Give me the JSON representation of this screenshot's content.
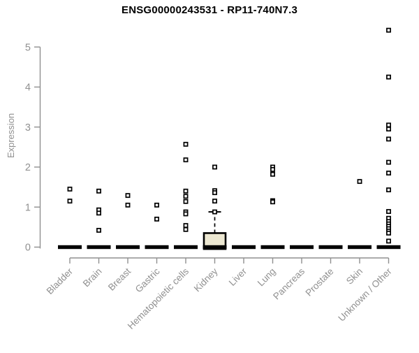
{
  "chart_data": {
    "type": "boxplot",
    "title": "ENSG00000243531 - RP11-740N7.3",
    "ylabel": "Expression",
    "xlabel": "",
    "ylim": [
      0,
      5.5
    ],
    "yticks": [
      0,
      1,
      2,
      3,
      4,
      5
    ],
    "grid": false,
    "legend": "none",
    "marker": "open-square",
    "categories": [
      "Bladder",
      "Brain",
      "Breast",
      "Gastric",
      "Hematopoietic cells",
      "Kidney",
      "Liver",
      "Lung",
      "Pancreas",
      "Prostate",
      "Skin",
      "Unknown / Other"
    ],
    "series": [
      {
        "category": "Bladder",
        "box": {
          "low": 0,
          "q1": 0,
          "median": 0,
          "q3": 0,
          "high": 0
        },
        "points": [
          1.45,
          1.15
        ]
      },
      {
        "category": "Brain",
        "box": {
          "low": 0,
          "q1": 0,
          "median": 0,
          "q3": 0,
          "high": 0
        },
        "points": [
          1.4,
          0.93,
          0.85,
          0.42
        ]
      },
      {
        "category": "Breast",
        "box": {
          "low": 0,
          "q1": 0,
          "median": 0,
          "q3": 0,
          "high": 0
        },
        "points": [
          1.29,
          1.05
        ]
      },
      {
        "category": "Gastric",
        "box": {
          "low": 0,
          "q1": 0,
          "median": 0,
          "q3": 0,
          "high": 0
        },
        "points": [
          1.05,
          0.7
        ]
      },
      {
        "category": "Hematopoietic cells",
        "box": {
          "low": 0,
          "q1": 0,
          "median": 0,
          "q3": 0,
          "high": 0
        },
        "points": [
          2.57,
          2.18,
          1.4,
          1.27,
          1.14,
          0.88,
          0.83,
          0.54,
          0.44
        ]
      },
      {
        "category": "Kidney",
        "box": {
          "low": 0,
          "q1": 0,
          "median": 0,
          "q3": 0.35,
          "high": 0.88
        },
        "points": [
          2.0,
          1.41,
          1.36,
          1.15,
          0.88
        ]
      },
      {
        "category": "Liver",
        "box": {
          "low": 0,
          "q1": 0,
          "median": 0,
          "q3": 0,
          "high": 0
        },
        "points": []
      },
      {
        "category": "Lung",
        "box": {
          "low": 0,
          "q1": 0,
          "median": 0,
          "q3": 0,
          "high": 0
        },
        "points": [
          2.0,
          1.94,
          1.82,
          1.16,
          1.13
        ]
      },
      {
        "category": "Pancreas",
        "box": {
          "low": 0,
          "q1": 0,
          "median": 0,
          "q3": 0,
          "high": 0
        },
        "points": []
      },
      {
        "category": "Prostate",
        "box": {
          "low": 0,
          "q1": 0,
          "median": 0,
          "q3": 0,
          "high": 0
        },
        "points": []
      },
      {
        "category": "Skin",
        "box": {
          "low": 0,
          "q1": 0,
          "median": 0,
          "q3": 0,
          "high": 0
        },
        "points": [
          1.64
        ]
      },
      {
        "category": "Unknown / Other",
        "box": {
          "low": 0,
          "q1": 0,
          "median": 0,
          "q3": 0,
          "high": 0
        },
        "points": [
          5.42,
          4.25,
          3.05,
          2.95,
          2.7,
          2.12,
          1.85,
          1.43,
          0.89,
          0.72,
          0.64,
          0.58,
          0.52,
          0.46,
          0.4,
          0.35,
          0.15
        ]
      }
    ],
    "colors": {
      "box_fill": "#ece7d1",
      "box_stroke": "#000000",
      "median": "#000000",
      "point_fill": "#ffffff",
      "point_stroke": "#000000",
      "axis": "#909090",
      "title": "#000000",
      "background": "#ffffff"
    }
  }
}
